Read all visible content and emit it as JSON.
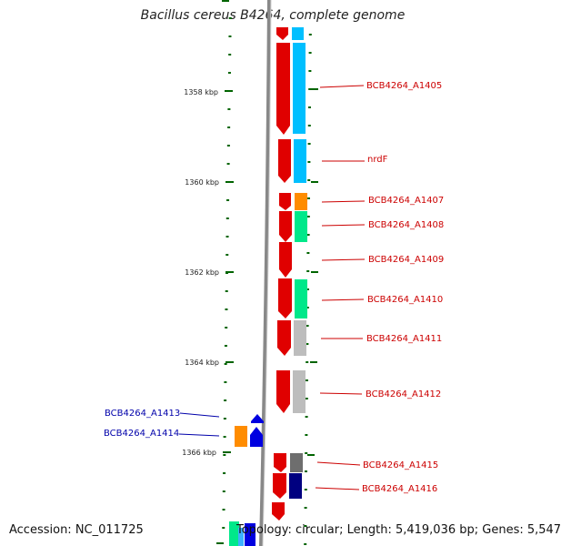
{
  "title": "Bacillus cereus B4264, complete genome",
  "accession": "Accession: NC_011725",
  "topology": "Topology: circular; Length: 5,419,036 bp; Genes: 5,547",
  "colors": {
    "forward": "#e00000",
    "reverse": "#0000e0",
    "tick": "#006400",
    "backbone": "#888888",
    "label_forward": "#cc0000",
    "label_reverse": "#0000aa"
  },
  "ticks": [
    {
      "label": "1358 kbp"
    },
    {
      "label": "1360 kbp"
    },
    {
      "label": "1362 kbp"
    },
    {
      "label": "1364 kbp"
    },
    {
      "label": "1366 kbp"
    }
  ],
  "gene_labels": [
    {
      "text": "BCB4264_A1405",
      "strand": "forward"
    },
    {
      "text": "nrdF",
      "strand": "forward"
    },
    {
      "text": "BCB4264_A1407",
      "strand": "forward"
    },
    {
      "text": "BCB4264_A1408",
      "strand": "forward"
    },
    {
      "text": "BCB4264_A1409",
      "strand": "forward"
    },
    {
      "text": "BCB4264_A1410",
      "strand": "forward"
    },
    {
      "text": "BCB4264_A1411",
      "strand": "forward"
    },
    {
      "text": "BCB4264_A1412",
      "strand": "forward"
    },
    {
      "text": "BCB4264_A1413",
      "strand": "reverse"
    },
    {
      "text": "BCB4264_A1414",
      "strand": "reverse"
    },
    {
      "text": "BCB4264_A1415",
      "strand": "forward"
    },
    {
      "text": "BCB4264_A1416",
      "strand": "forward"
    }
  ]
}
